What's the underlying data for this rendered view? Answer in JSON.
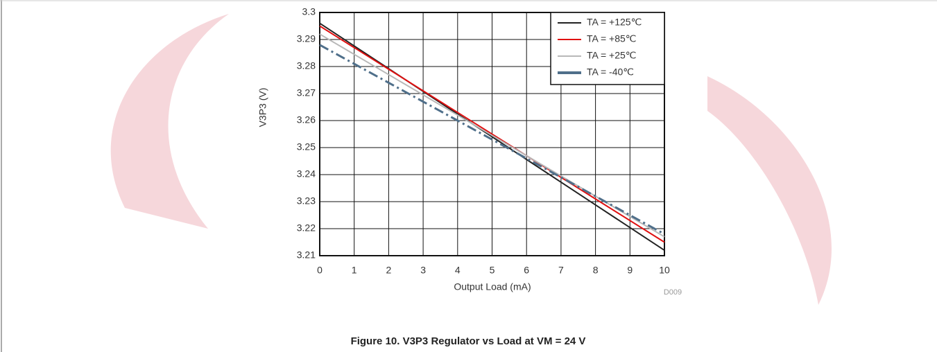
{
  "chart_data": {
    "type": "line",
    "x_label": "Output Load (mA)",
    "y_label": "V3P3 (V)",
    "code": "D009",
    "caption": "Figure 10. V3P3 Regulator vs Load at VM = 24 V",
    "x": [
      0,
      2,
      4,
      6,
      8,
      10
    ],
    "series": [
      {
        "name": "TA = +125℃",
        "color": "#222222",
        "values": [
          3.296,
          3.2792,
          3.2624,
          3.2456,
          3.2288,
          3.212
        ]
      },
      {
        "name": "TA = +85℃",
        "color": "#e01010",
        "values": [
          3.295,
          3.279,
          3.263,
          3.247,
          3.231,
          3.215
        ]
      },
      {
        "name": "TA = +25℃",
        "color": "#b8b8b8",
        "values": [
          3.292,
          3.277,
          3.262,
          3.247,
          3.232,
          3.217
        ]
      },
      {
        "name": "TA = -40℃",
        "color": "#4f6f8a",
        "dashed": true,
        "values": [
          3.288,
          3.274,
          3.26,
          3.246,
          3.232,
          3.218
        ]
      }
    ],
    "xlim": [
      0,
      10
    ],
    "xticks": [
      0,
      1,
      2,
      3,
      4,
      5,
      6,
      7,
      8,
      9,
      10
    ],
    "ylim": [
      3.21,
      3.3
    ],
    "yticks": [
      3.21,
      3.22,
      3.23,
      3.24,
      3.25,
      3.26,
      3.27,
      3.28,
      3.29,
      3.3
    ],
    "grid": true,
    "legend": "top-right"
  }
}
